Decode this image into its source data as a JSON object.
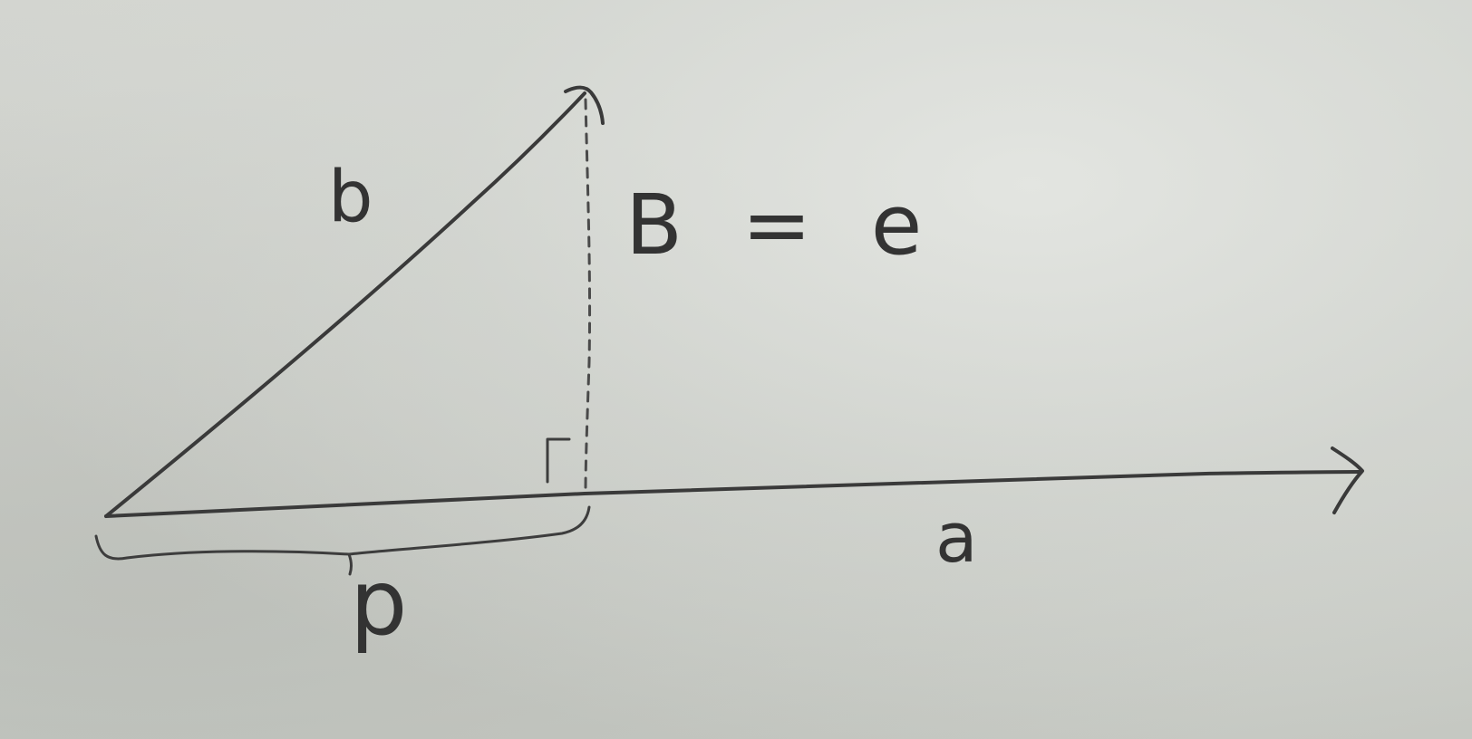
{
  "diagram": {
    "labels": {
      "vector_b": "b",
      "vector_a": "a",
      "projection": "p",
      "equation": "B = e"
    },
    "ink_color": "#3a3a3a",
    "paper_color": "#cdcfca"
  }
}
